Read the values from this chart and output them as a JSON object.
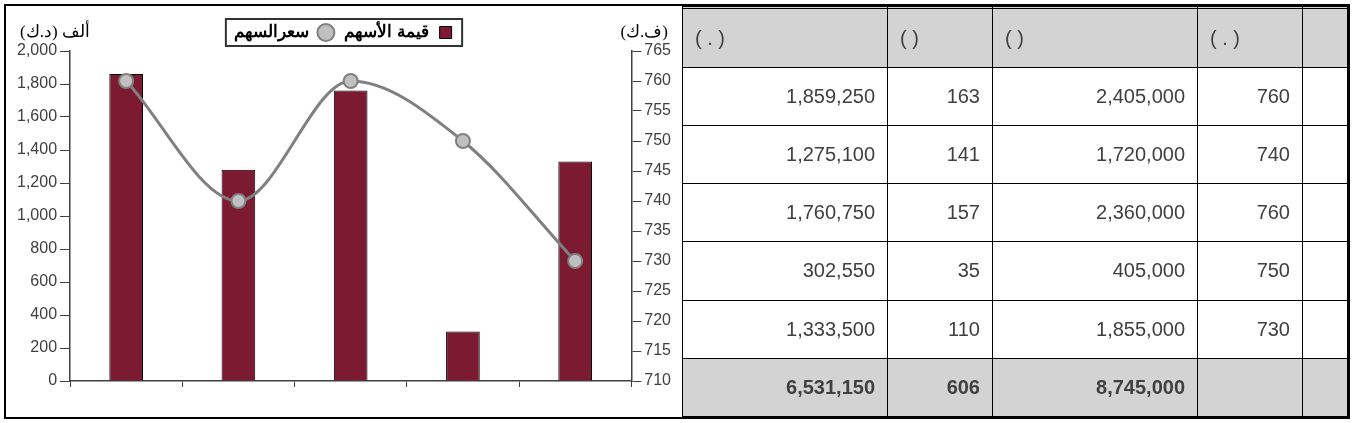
{
  "chart_data": [
    {
      "type": "bar",
      "categories": [
        null,
        null,
        null,
        null,
        null
      ],
      "ylabel": "ألف (د.ك)",
      "y2label": "(ف.ك)",
      "series": [
        {
          "name": "قيمة الأسهم",
          "color": "#7b1a30",
          "values": [
            1860,
            1280,
            1760,
            300,
            1330
          ]
        },
        {
          "name": "سعرالسهم",
          "type": "line",
          "axis": "y2",
          "color": "#808080",
          "values": [
            760,
            740,
            760,
            750,
            730
          ]
        }
      ],
      "ylim": [
        0,
        2000
      ],
      "yticks": [
        0,
        200,
        400,
        600,
        800,
        {
          "value": 1000,
          "label": "1,000"
        },
        {
          "value": 1200,
          "label": "1,200"
        },
        {
          "value": 1400,
          "label": "1,400"
        },
        {
          "value": 1600,
          "label": "1,600"
        },
        {
          "value": 1800,
          "label": "1,800"
        },
        {
          "value": 2000,
          "label": "2,000"
        }
      ],
      "y2lim": [
        710,
        765
      ],
      "y2ticks": [
        710,
        715,
        720,
        725,
        730,
        735,
        740,
        745,
        750,
        755,
        760,
        765
      ],
      "grid": false,
      "legend": "top",
      "marker": "circle",
      "tick_labels": "y"
    },
    {
      "type": "other",
      "annotations": [
        "( . )",
        "(   )",
        "(   )",
        "( . )",
        "1,859,250",
        "163",
        "2,405,000",
        "760",
        "1,275,100",
        "141",
        "1,720,000",
        "740",
        "1,760,750",
        "157",
        "2,360,000",
        "760",
        "302,550",
        "35",
        "405,000",
        "750",
        "1,333,500",
        "110",
        "1,855,000",
        "730",
        "6,531,150",
        "606",
        "8,745,000"
      ]
    }
  ]
}
